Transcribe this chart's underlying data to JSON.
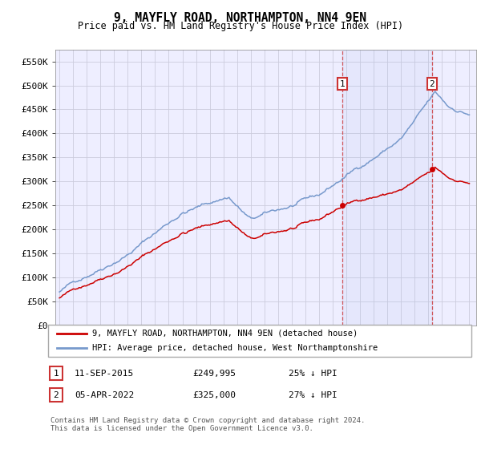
{
  "title": "9, MAYFLY ROAD, NORTHAMPTON, NN4 9EN",
  "subtitle": "Price paid vs. HM Land Registry's House Price Index (HPI)",
  "y_ticks": [
    0,
    50000,
    100000,
    150000,
    200000,
    250000,
    300000,
    350000,
    400000,
    450000,
    500000,
    550000
  ],
  "y_labels": [
    "£0",
    "£50K",
    "£100K",
    "£150K",
    "£200K",
    "£250K",
    "£300K",
    "£350K",
    "£400K",
    "£450K",
    "£500K",
    "£550K"
  ],
  "ylim": [
    0,
    575000
  ],
  "xlim_lo": 1994.7,
  "xlim_hi": 2025.5,
  "grid_color": "#ccccdd",
  "hpi_color": "#7799cc",
  "price_color": "#cc0000",
  "sale1_date": 2015.69,
  "sale1_price": 249995,
  "sale1_label": "1",
  "sale2_date": 2022.26,
  "sale2_price": 325000,
  "sale2_label": "2",
  "legend_line1": "9, MAYFLY ROAD, NORTHAMPTON, NN4 9EN (detached house)",
  "legend_line2": "HPI: Average price, detached house, West Northamptonshire",
  "table_row1": [
    "1",
    "11-SEP-2015",
    "£249,995",
    "25% ↓ HPI"
  ],
  "table_row2": [
    "2",
    "05-APR-2022",
    "£325,000",
    "27% ↓ HPI"
  ],
  "footer": "Contains HM Land Registry data © Crown copyright and database right 2024.\nThis data is licensed under the Open Government Licence v3.0.",
  "background_color": "#ffffff",
  "plot_bg_color": "#eeeeff"
}
